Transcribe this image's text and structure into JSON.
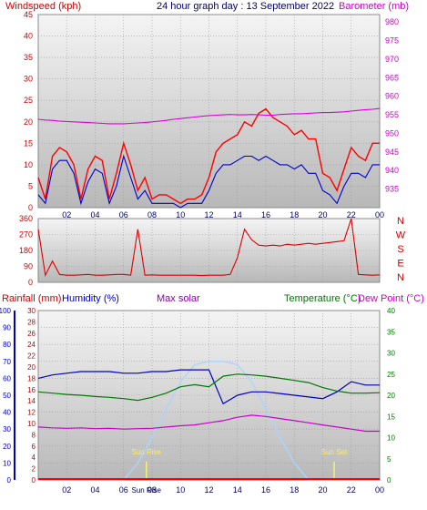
{
  "header": {
    "left_title": "Windspeed (kph)",
    "center_title": "24 hour graph day : 13 September 2022",
    "right_title": "Barometer (mb)"
  },
  "colors": {
    "wind": "#ff0000",
    "gust": "#ff0000",
    "avg_wind": "#0000cc",
    "barometer": "#dd00dd",
    "rain": "#ff0000",
    "humidity": "#0000bb",
    "solar": "#aad4ff",
    "temperature": "#007700",
    "dewpoint": "#cc00cc",
    "sun_markers": "#ffff66"
  },
  "chart_data": [
    {
      "type": "line",
      "panel": "wind",
      "xlabel": "",
      "x_ticks": [
        "02",
        "04",
        "06",
        "08",
        "10",
        "12",
        "14",
        "16",
        "18",
        "20",
        "22",
        "00"
      ],
      "ylim": [
        0,
        45
      ],
      "y_ticks": [
        0,
        5,
        10,
        15,
        20,
        25,
        30,
        35,
        40,
        45
      ],
      "y2lim": [
        930,
        982
      ],
      "y2_ticks": [
        935,
        940,
        945,
        950,
        955,
        960,
        965,
        970,
        975,
        980
      ],
      "hours": [
        0,
        0.5,
        1,
        1.5,
        2,
        2.5,
        3,
        3.5,
        4,
        4.5,
        5,
        5.5,
        6,
        6.5,
        7,
        7.5,
        8,
        8.5,
        9,
        9.5,
        10,
        10.5,
        11,
        11.5,
        12,
        12.5,
        13,
        13.5,
        14,
        14.5,
        15,
        15.5,
        16,
        16.5,
        17,
        17.5,
        18,
        18.5,
        19,
        19.5,
        20,
        20.5,
        21,
        21.5,
        22,
        22.5,
        23,
        23.5,
        24
      ],
      "series": [
        {
          "key": "gust",
          "values": [
            7,
            2,
            12,
            14,
            13,
            10,
            2,
            9,
            12,
            11,
            2,
            8,
            15,
            10,
            4,
            7,
            2,
            3,
            3,
            2,
            1,
            2,
            2,
            3,
            7,
            13,
            15,
            16,
            17,
            20,
            19,
            22,
            23,
            21,
            20,
            19,
            17,
            18,
            16,
            16,
            8,
            7,
            4,
            9,
            14,
            12,
            11,
            15,
            15
          ]
        },
        {
          "key": "wind",
          "values": [
            3,
            1,
            9,
            11,
            11,
            8,
            1,
            6,
            9,
            8,
            1,
            5,
            12,
            7,
            2,
            4,
            1,
            1,
            1,
            1,
            0,
            1,
            1,
            1,
            4,
            8,
            10,
            10,
            11,
            12,
            12,
            11,
            12,
            11,
            10,
            10,
            9,
            10,
            8,
            8,
            4,
            3,
            1,
            5,
            8,
            8,
            7,
            10,
            10
          ]
        },
        {
          "key": "barometer",
          "values": [
            953.8,
            953.6,
            953.5,
            953.3,
            953.2,
            953.1,
            953.0,
            952.9,
            952.8,
            952.7,
            952.6,
            952.6,
            952.6,
            952.7,
            952.8,
            952.9,
            953.1,
            953.3,
            953.5,
            953.8,
            954.0,
            954.2,
            954.4,
            954.6,
            954.8,
            954.9,
            955.0,
            955.1,
            955.0,
            955.0,
            955.1,
            955.0,
            954.9,
            954.9,
            955.1,
            955.2,
            955.3,
            955.3,
            955.4,
            955.5,
            955.6,
            955.6,
            955.7,
            955.8,
            956.0,
            956.2,
            956.4,
            956.5,
            956.7
          ]
        }
      ]
    },
    {
      "type": "line",
      "panel": "wind_direction",
      "ylim": [
        0,
        360
      ],
      "y_ticks": [
        0,
        90,
        180,
        270,
        360
      ],
      "dir_labels": [
        "N",
        "W",
        "S",
        "E",
        "N"
      ],
      "hours": [
        0,
        0.5,
        1,
        1.5,
        2,
        2.5,
        3,
        3.5,
        4,
        4.5,
        5,
        5.5,
        6,
        6.5,
        7,
        7.5,
        8,
        8.5,
        9,
        9.5,
        10,
        10.5,
        11,
        11.5,
        12,
        12.5,
        13,
        13.5,
        14,
        14.5,
        15,
        15.5,
        16,
        16.5,
        17,
        17.5,
        18,
        18.5,
        19,
        19.5,
        20,
        20.5,
        21,
        21.5,
        22,
        22.5,
        23,
        23.5,
        24
      ],
      "values": [
        300,
        40,
        120,
        45,
        40,
        40,
        42,
        45,
        40,
        40,
        42,
        45,
        45,
        40,
        300,
        40,
        42,
        40,
        40,
        40,
        40,
        40,
        40,
        38,
        40,
        40,
        40,
        45,
        140,
        300,
        240,
        210,
        205,
        210,
        205,
        215,
        210,
        215,
        220,
        215,
        220,
        225,
        230,
        235,
        360,
        45,
        42,
        40,
        42
      ]
    },
    {
      "type": "line",
      "panel": "rain_humidity_solar_temp",
      "header_labels": [
        "Rainfall (mm)",
        "Humidity (%)",
        "Max solar",
        "Temperature (°C)",
        "Dew Point (°C)"
      ],
      "sun_labels": [
        "Sun Rise",
        "Sun Set"
      ],
      "x_ticks": [
        "02",
        "04",
        "06",
        "08",
        "Sun Rise",
        "10",
        "12",
        "14",
        "16",
        "18",
        "20",
        "22",
        "00"
      ],
      "humidity_ticks": [
        0,
        10,
        20,
        30,
        40,
        50,
        60,
        70,
        80,
        90,
        100
      ],
      "rain_ticks": [
        0,
        2,
        4,
        6,
        8,
        10,
        12,
        14,
        16,
        18,
        20,
        22,
        24,
        26,
        28,
        30
      ],
      "temp_ticks": [
        0,
        5,
        10,
        15,
        20,
        25,
        30,
        35,
        40
      ],
      "ylim_humidity": [
        0,
        100
      ],
      "ylim_temp": [
        0,
        40
      ],
      "hours": [
        0,
        1,
        2,
        3,
        4,
        5,
        6,
        7,
        8,
        9,
        10,
        11,
        12,
        13,
        14,
        15,
        16,
        17,
        18,
        19,
        20,
        21,
        22,
        23,
        24
      ],
      "series": [
        {
          "key": "humidity",
          "values": [
            60,
            62,
            63,
            64,
            64,
            64,
            63,
            63,
            64,
            64,
            65,
            65,
            65,
            45,
            50,
            52,
            52,
            51,
            50,
            49,
            48,
            52,
            58,
            56,
            56
          ]
        },
        {
          "key": "temperature",
          "values": [
            20.8,
            20.5,
            20.2,
            20.0,
            19.7,
            19.5,
            19.2,
            18.8,
            19.5,
            20.5,
            22.0,
            22.5,
            22.0,
            24.5,
            25.0,
            24.8,
            24.5,
            24.0,
            23.5,
            23.0,
            21.8,
            21.0,
            20.5,
            20.5,
            20.6
          ]
        },
        {
          "key": "dewpoint",
          "values": [
            12.5,
            12.3,
            12.2,
            12.3,
            12.1,
            12.2,
            12.0,
            12.1,
            12.2,
            12.5,
            12.8,
            13.0,
            13.5,
            14.0,
            14.8,
            15.3,
            15.0,
            14.5,
            14.0,
            13.5,
            13.0,
            12.5,
            12.0,
            11.5,
            11.5
          ]
        },
        {
          "key": "max_solar",
          "values": [
            0,
            0,
            0,
            0,
            0,
            0,
            0,
            10,
            25,
            42,
            58,
            68,
            70,
            70,
            68,
            58,
            42,
            25,
            10,
            0,
            0,
            0,
            0,
            0,
            0
          ]
        }
      ],
      "rain_total_mm": 0,
      "sunrise_hour": 7.6,
      "sunset_hour": 20.8
    }
  ]
}
